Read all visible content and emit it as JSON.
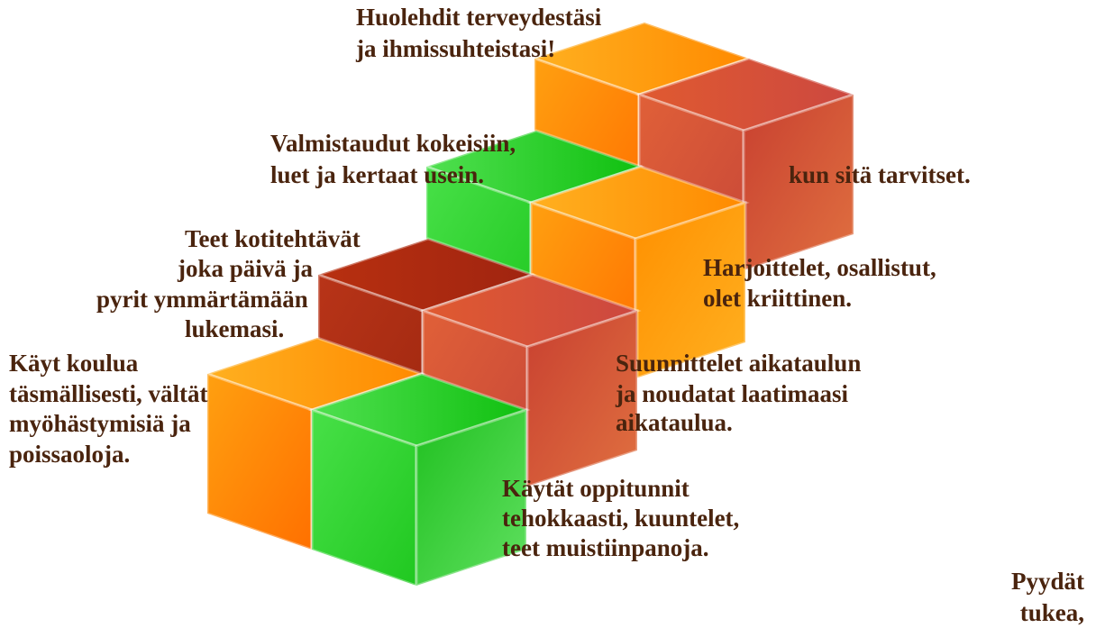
{
  "blocks": [
    {
      "lines": [
        "Huolehdit terveydestäsi",
        "ja ihmissuhteistasi!"
      ]
    },
    {
      "lines": [
        "Valmistaudut kokeisiin,",
        "luet ja kertaat usein."
      ]
    },
    {
      "lines": [
        "kun sitä tarvitset."
      ]
    },
    {
      "lines": [
        "Teet kotitehtävät",
        "joka päivä ja",
        "pyrit ymmärtämään",
        "lukemasi."
      ]
    },
    {
      "lines": [
        "Harjoittelet, osallistut,",
        "olet kriittinen."
      ]
    },
    {
      "lines": [
        "Käyt koulua",
        "täsmällisesti, vältät",
        "myöhästymisiä ja",
        "poissaoloja."
      ]
    },
    {
      "lines": [
        "Suunnittelet aikataulun",
        "ja noudatat laatimaasi",
        "aikataulua."
      ]
    },
    {
      "lines": [
        "Käytät oppitunnit",
        "tehokkaasti, kuuntelet,",
        "teet muistiinpanoja."
      ]
    },
    {
      "lines": [
        "Pyydät",
        "tukea,"
      ]
    }
  ]
}
